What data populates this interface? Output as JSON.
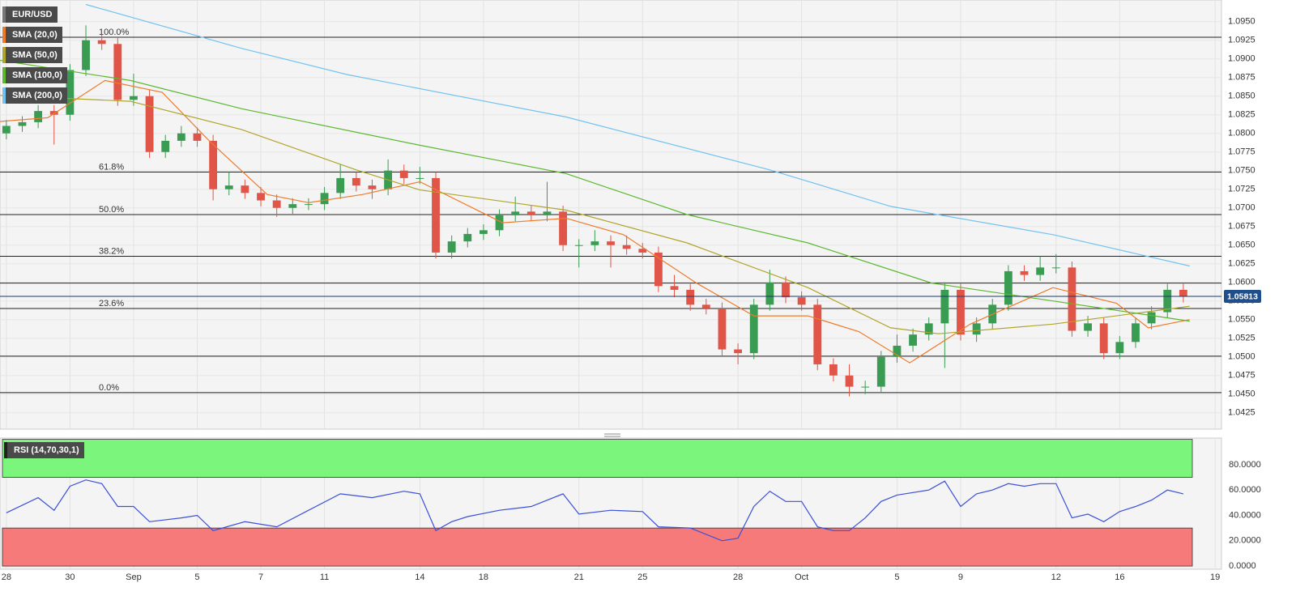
{
  "chart_data": [
    {
      "type": "candlestick",
      "symbol": "EUR/USD",
      "grid": true,
      "up_color": "#3a9b52",
      "down_color": "#e05548",
      "x": [
        0,
        0.5,
        1,
        1.5,
        2,
        2.5,
        3,
        3.5,
        4,
        4.5,
        5,
        5.5,
        6,
        6.5,
        7,
        7.5,
        8,
        8.5,
        9,
        9.5,
        10,
        10.5,
        11,
        11.5,
        12,
        12.5,
        13,
        13.5,
        14,
        14.5,
        15,
        15.5,
        16,
        16.5,
        17,
        17.5,
        18,
        18.5,
        19,
        19.5,
        20,
        20.5,
        21,
        21.5,
        22,
        22.5,
        23,
        23.5,
        24,
        24.5,
        25,
        25.5,
        26,
        26.5,
        27,
        27.5,
        28,
        28.5,
        29,
        29.5,
        30,
        30.5,
        31,
        31.5,
        32,
        32.5,
        33,
        33.5,
        34,
        34.5,
        35,
        35.5,
        36,
        36.5,
        37
      ],
      "open": [
        1.08,
        1.081,
        1.0815,
        1.083,
        1.0825,
        1.0885,
        1.0925,
        1.092,
        1.0845,
        1.085,
        1.0775,
        1.079,
        1.08,
        1.079,
        1.0725,
        1.073,
        1.072,
        1.071,
        1.07,
        1.0705,
        1.0705,
        1.072,
        1.074,
        1.073,
        1.0725,
        1.075,
        1.074,
        1.074,
        1.064,
        1.0655,
        1.0665,
        1.067,
        1.069,
        1.0695,
        1.069,
        1.0695,
        1.065,
        1.065,
        1.0655,
        1.065,
        1.0645,
        1.064,
        1.0595,
        1.059,
        1.057,
        1.0565,
        1.051,
        1.0505,
        1.057,
        1.06,
        1.058,
        1.057,
        1.049,
        1.0475,
        1.046,
        1.046,
        1.05,
        1.0515,
        1.053,
        1.0545,
        1.059,
        1.053,
        1.0545,
        1.057,
        1.0615,
        1.061,
        1.062,
        1.062,
        1.0535,
        1.0545,
        1.0505,
        1.052,
        1.0545,
        1.056,
        1.059
      ],
      "high": [
        1.0818,
        1.0823,
        1.0838,
        1.0838,
        1.0893,
        1.0945,
        1.0933,
        1.0928,
        1.088,
        1.0858,
        1.0798,
        1.081,
        1.0808,
        1.0798,
        1.0748,
        1.0738,
        1.0728,
        1.0718,
        1.0713,
        1.0713,
        1.0728,
        1.0758,
        1.0748,
        1.0738,
        1.0765,
        1.0758,
        1.0755,
        1.0748,
        1.0663,
        1.0673,
        1.0678,
        1.0698,
        1.0715,
        1.0703,
        1.0735,
        1.0703,
        1.0658,
        1.067,
        1.0663,
        1.0663,
        1.0653,
        1.0648,
        1.061,
        1.0598,
        1.0578,
        1.0573,
        1.0518,
        1.0578,
        1.0617,
        1.0608,
        1.0588,
        1.0578,
        1.0498,
        1.049,
        1.0468,
        1.0508,
        1.053,
        1.0538,
        1.0553,
        1.06,
        1.0598,
        1.0553,
        1.0578,
        1.0623,
        1.0623,
        1.0635,
        1.0638,
        1.0628,
        1.0555,
        1.0553,
        1.0528,
        1.0553,
        1.0568,
        1.0598,
        1.0598
      ],
      "low": [
        1.0792,
        1.0802,
        1.0807,
        1.0785,
        1.0817,
        1.0877,
        1.0912,
        1.0837,
        1.0837,
        1.0767,
        1.0767,
        1.0782,
        1.0782,
        1.071,
        1.0717,
        1.0712,
        1.0702,
        1.0688,
        1.0692,
        1.0697,
        1.0697,
        1.0712,
        1.0722,
        1.0712,
        1.0717,
        1.0732,
        1.0732,
        1.0632,
        1.0632,
        1.0647,
        1.0657,
        1.0662,
        1.0682,
        1.0682,
        1.0682,
        1.0642,
        1.062,
        1.0642,
        1.062,
        1.0637,
        1.0632,
        1.0587,
        1.058,
        1.0562,
        1.0557,
        1.0502,
        1.049,
        1.0497,
        1.0562,
        1.0572,
        1.0562,
        1.0482,
        1.0467,
        1.0447,
        1.045,
        1.0452,
        1.0492,
        1.0507,
        1.0522,
        1.0485,
        1.0522,
        1.052,
        1.0537,
        1.0562,
        1.0602,
        1.0602,
        1.0612,
        1.0527,
        1.0527,
        1.0497,
        1.0497,
        1.0512,
        1.0537,
        1.0552,
        1.0573
      ],
      "close": [
        1.081,
        1.0815,
        1.083,
        1.0825,
        1.0885,
        1.0925,
        1.092,
        1.0845,
        1.085,
        1.0775,
        1.079,
        1.08,
        1.079,
        1.0725,
        1.073,
        1.072,
        1.071,
        1.07,
        1.0705,
        1.0705,
        1.072,
        1.074,
        1.073,
        1.0725,
        1.075,
        1.074,
        1.074,
        1.064,
        1.0655,
        1.0665,
        1.067,
        1.069,
        1.0695,
        1.069,
        1.0695,
        1.065,
        1.065,
        1.0655,
        1.065,
        1.0645,
        1.064,
        1.0595,
        1.059,
        1.057,
        1.0565,
        1.051,
        1.0505,
        1.057,
        1.06,
        1.058,
        1.057,
        1.049,
        1.0475,
        1.046,
        1.046,
        1.05,
        1.0515,
        1.053,
        1.0545,
        1.059,
        1.053,
        1.0545,
        1.057,
        1.0615,
        1.061,
        1.062,
        1.062,
        1.0535,
        1.0545,
        1.0505,
        1.052,
        1.0545,
        1.056,
        1.059,
        1.0581
      ],
      "series": [
        {
          "name": "SMA (20,0)",
          "color": "#f07a2a",
          "x": [
            -0.2,
            1.3,
            3.1,
            4.9,
            6.4,
            8.2,
            9.5,
            11.2,
            13,
            15.6,
            17.6,
            19.4,
            21.7,
            23.5,
            25.2,
            26.8,
            28.4,
            30.3,
            32.9,
            34.9,
            35.9,
            37.2
          ],
          "values": [
            1.0816,
            1.0821,
            1.0871,
            1.0855,
            1.0789,
            1.0718,
            1.0707,
            1.0718,
            1.0735,
            1.068,
            1.0686,
            1.0664,
            1.0599,
            1.0555,
            1.0555,
            1.0534,
            1.0492,
            1.0544,
            1.0593,
            1.0572,
            1.0539,
            1.055
          ]
        },
        {
          "name": "SMA (50,0)",
          "color": "#b0a52a",
          "x": [
            -0.2,
            3.9,
            7.4,
            11,
            13.0,
            17.6,
            21.4,
            25.2,
            27.8,
            29.3,
            32.9,
            37.2
          ],
          "values": [
            1.0851,
            1.0843,
            1.0805,
            1.0751,
            1.0724,
            1.0697,
            1.0653,
            1.0593,
            1.0539,
            1.0531,
            1.0544,
            1.0568
          ]
        },
        {
          "name": "SMA (100,0)",
          "color": "#5cb82e",
          "x": [
            -0.2,
            3.9,
            7.4,
            13,
            17.6,
            21.4,
            25.2,
            29.1,
            32.9,
            37.2
          ],
          "values": [
            1.0898,
            1.0871,
            1.0833,
            1.0784,
            1.0746,
            1.0691,
            1.0653,
            1.0599,
            1.0575,
            1.0548
          ]
        },
        {
          "name": "SMA (200,0)",
          "color": "#72c2f0",
          "x": [
            2.5,
            7.4,
            10.7,
            17.6,
            24,
            27.8,
            32.9,
            37.2
          ],
          "values": [
            1.0973,
            1.0914,
            1.0879,
            1.0822,
            1.0751,
            1.0702,
            1.0664,
            1.0622
          ]
        }
      ],
      "levels": [
        {
          "label": "100.0%",
          "value": 1.0929
        },
        {
          "label": "61.8%",
          "value": 1.0748
        },
        {
          "label": "50.0%",
          "value": 1.0691
        },
        {
          "label": "38.2%",
          "value": 1.0635
        },
        {
          "label": "23.6%",
          "value": 1.0565
        },
        {
          "label": "0.0%",
          "value": 1.0452
        }
      ],
      "lines": [
        1.0599,
        1.0501
      ],
      "last_price": 1.05813,
      "xlim": [
        -0.2,
        38.2
      ],
      "xticks": [
        {
          "value": 0,
          "label": "28"
        },
        {
          "value": 2,
          "label": "30"
        },
        {
          "value": 4,
          "label": "Sep"
        },
        {
          "value": 6,
          "label": "5"
        },
        {
          "value": 8,
          "label": "7"
        },
        {
          "value": 10,
          "label": "11"
        },
        {
          "value": 13,
          "label": "14"
        },
        {
          "value": 15,
          "label": "18"
        },
        {
          "value": 18,
          "label": "21"
        },
        {
          "value": 20,
          "label": "25"
        },
        {
          "value": 23,
          "label": "28"
        },
        {
          "value": 25,
          "label": "Oct"
        },
        {
          "value": 28,
          "label": "5"
        },
        {
          "value": 30,
          "label": "9"
        },
        {
          "value": 33,
          "label": "12"
        },
        {
          "value": 35,
          "label": "16"
        },
        {
          "value": 38,
          "label": "19"
        }
      ],
      "ylim": [
        1.0403,
        1.0979
      ],
      "yticks": [
        {
          "value": 1.0425,
          "label": "1.0425"
        },
        {
          "value": 1.045,
          "label": "1.0450"
        },
        {
          "value": 1.0475,
          "label": "1.0475"
        },
        {
          "value": 1.05,
          "label": "1.0500"
        },
        {
          "value": 1.0525,
          "label": "1.0525"
        },
        {
          "value": 1.055,
          "label": "1.0550"
        },
        {
          "value": 1.0575,
          "label": "1.0575"
        },
        {
          "value": 1.06,
          "label": "1.0600"
        },
        {
          "value": 1.0625,
          "label": "1.0625"
        },
        {
          "value": 1.065,
          "label": "1.0650"
        },
        {
          "value": 1.0675,
          "label": "1.0675"
        },
        {
          "value": 1.07,
          "label": "1.0700"
        },
        {
          "value": 1.0725,
          "label": "1.0725"
        },
        {
          "value": 1.075,
          "label": "1.0750"
        },
        {
          "value": 1.0775,
          "label": "1.0775"
        },
        {
          "value": 1.08,
          "label": "1.0800"
        },
        {
          "value": 1.0825,
          "label": "1.0825"
        },
        {
          "value": 1.085,
          "label": "1.0850"
        },
        {
          "value": 1.0875,
          "label": "1.0875"
        },
        {
          "value": 1.09,
          "label": "1.0900"
        },
        {
          "value": 1.0925,
          "label": "1.0925"
        },
        {
          "value": 1.095,
          "label": "1.0950"
        }
      ]
    },
    {
      "type": "line",
      "title": "RSI (14,70,30,1)",
      "color": "#3a50d8",
      "x": [
        0,
        1,
        1.5,
        2,
        2.5,
        3,
        3.5,
        4,
        4.5,
        5.5,
        6,
        6.5,
        7.5,
        8.5,
        9.5,
        10.5,
        11.5,
        12.5,
        13,
        13.5,
        14,
        14.5,
        15.5,
        16.5,
        17.5,
        18,
        19,
        20,
        20.5,
        21.5,
        22.5,
        23,
        23.5,
        24,
        24.5,
        25,
        25.5,
        26,
        26.5,
        27,
        27.5,
        28,
        28.5,
        29,
        29.5,
        30,
        30.5,
        31,
        31.5,
        32,
        32.5,
        33,
        33.5,
        34,
        34.5,
        35,
        35.5,
        36,
        36.5,
        37
      ],
      "values": [
        42,
        54,
        44,
        63,
        68,
        65,
        47,
        47,
        35,
        38,
        40,
        28,
        35,
        31,
        44,
        57,
        54,
        59,
        57,
        28,
        35,
        39,
        44,
        47,
        57,
        41,
        44,
        43,
        31,
        30,
        20,
        22,
        47,
        59,
        51,
        51,
        31,
        28,
        28,
        38,
        51,
        56,
        58,
        60,
        67,
        47,
        57,
        60,
        65,
        63,
        65,
        65,
        38,
        41,
        35,
        43,
        47,
        52,
        60,
        57
      ],
      "zones": [
        {
          "from": 70,
          "to": 100,
          "color": "#7cf57c"
        },
        {
          "from": 0,
          "to": 30,
          "color": "#f77a7a"
        }
      ],
      "ylim": [
        -2.5,
        101
      ],
      "yticks": [
        {
          "value": 0,
          "label": "0.0000"
        },
        {
          "value": 20,
          "label": "20.0000"
        },
        {
          "value": 40,
          "label": "40.0000"
        },
        {
          "value": 60,
          "label": "60.0000"
        },
        {
          "value": 80,
          "label": "80.0000"
        }
      ]
    }
  ]
}
